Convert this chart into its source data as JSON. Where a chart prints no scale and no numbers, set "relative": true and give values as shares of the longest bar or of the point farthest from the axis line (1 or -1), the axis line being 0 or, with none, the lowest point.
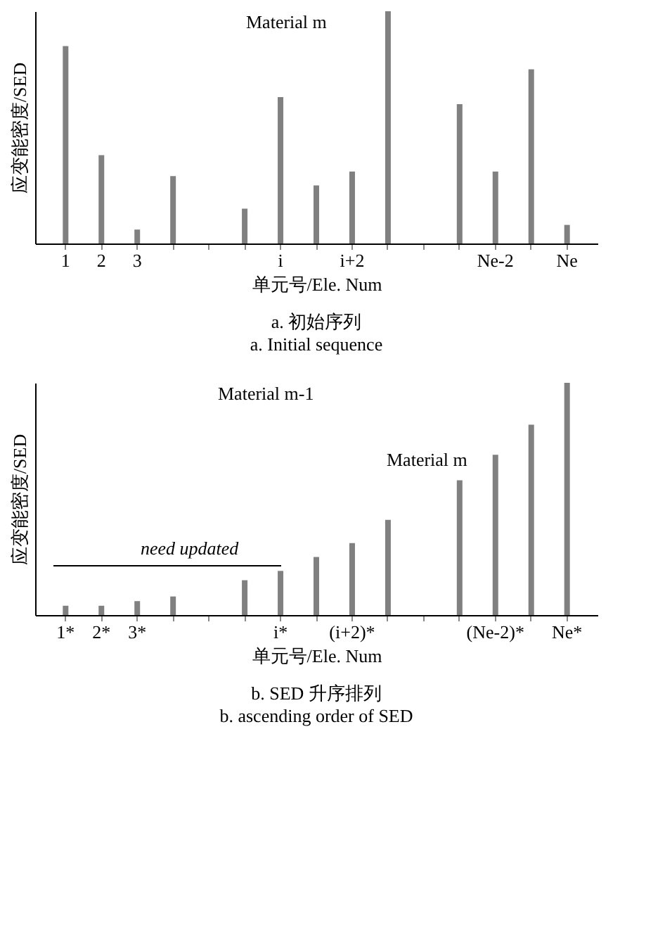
{
  "chart_data": [
    {
      "type": "bar",
      "relative": true,
      "title": "a. 初始序列",
      "subtitle": "a. Initial sequence",
      "xlabel": "单元号/Ele. Num",
      "ylabel": "应变能密度/SED",
      "color": "#808080",
      "categories": [
        "1",
        "2",
        "3",
        null,
        null,
        null,
        "i",
        null,
        "i+2",
        null,
        null,
        null,
        "Ne-2",
        null,
        "Ne"
      ],
      "values": [
        0.85,
        0.38,
        0.06,
        0.29,
        null,
        0.15,
        0.63,
        0.25,
        0.31,
        1.0,
        null,
        0.6,
        0.31,
        0.75,
        0.08
      ],
      "annotations": [
        "Material m"
      ]
    },
    {
      "type": "bar",
      "relative": true,
      "title": "b. SED 升序排列",
      "subtitle": "b. ascending order of SED",
      "xlabel": "单元号/Ele. Num",
      "ylabel": "应变能密度/SED",
      "color": "#808080",
      "categories": [
        "1*",
        "2*",
        "3*",
        null,
        null,
        null,
        "i*",
        null,
        "(i+2)*",
        null,
        null,
        null,
        "(Ne-2)*",
        null,
        "Ne*"
      ],
      "values": [
        0.04,
        0.04,
        0.06,
        0.08,
        null,
        0.15,
        0.19,
        0.25,
        0.31,
        0.41,
        null,
        0.58,
        0.69,
        0.82,
        1.0
      ],
      "annotations": [
        "Material m-1",
        "Material m",
        "need updated"
      ]
    }
  ]
}
